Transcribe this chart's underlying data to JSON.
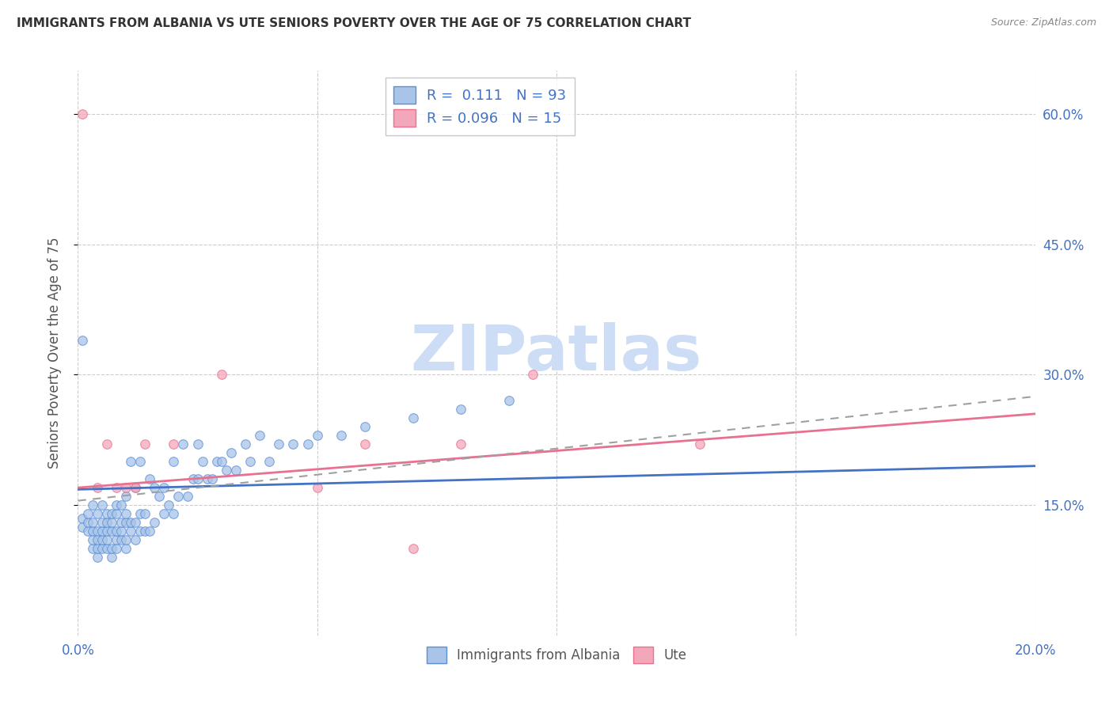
{
  "title": "IMMIGRANTS FROM ALBANIA VS UTE SENIORS POVERTY OVER THE AGE OF 75 CORRELATION CHART",
  "source": "Source: ZipAtlas.com",
  "ylabel": "Seniors Poverty Over the Age of 75",
  "xlim": [
    0.0,
    0.2
  ],
  "ylim": [
    0.0,
    0.65
  ],
  "yticks": [
    0.15,
    0.3,
    0.45,
    0.6
  ],
  "ytick_labels": [
    "15.0%",
    "30.0%",
    "45.0%",
    "60.0%"
  ],
  "xticks": [
    0.0,
    0.05,
    0.1,
    0.15,
    0.2
  ],
  "xtick_labels": [
    "0.0%",
    "",
    "",
    "",
    "20.0%"
  ],
  "albania_R": 0.111,
  "albania_N": 93,
  "ute_R": 0.096,
  "ute_N": 15,
  "albania_color": "#a8c4e8",
  "ute_color": "#f4a7b9",
  "albania_edge_color": "#5b8fd4",
  "ute_edge_color": "#e87090",
  "albania_line_color": "#4472c4",
  "ute_line_color": "#e87090",
  "dash_line_color": "#a0a0a0",
  "watermark_color": "#ccddf5",
  "albania_scatter_x": [
    0.001,
    0.001,
    0.002,
    0.002,
    0.002,
    0.003,
    0.003,
    0.003,
    0.003,
    0.003,
    0.004,
    0.004,
    0.004,
    0.004,
    0.004,
    0.005,
    0.005,
    0.005,
    0.005,
    0.005,
    0.006,
    0.006,
    0.006,
    0.006,
    0.006,
    0.007,
    0.007,
    0.007,
    0.007,
    0.007,
    0.008,
    0.008,
    0.008,
    0.008,
    0.008,
    0.009,
    0.009,
    0.009,
    0.009,
    0.01,
    0.01,
    0.01,
    0.01,
    0.01,
    0.011,
    0.011,
    0.011,
    0.012,
    0.012,
    0.012,
    0.013,
    0.013,
    0.013,
    0.014,
    0.014,
    0.015,
    0.015,
    0.016,
    0.016,
    0.017,
    0.018,
    0.018,
    0.019,
    0.02,
    0.02,
    0.021,
    0.022,
    0.023,
    0.024,
    0.025,
    0.025,
    0.026,
    0.027,
    0.028,
    0.029,
    0.03,
    0.031,
    0.032,
    0.033,
    0.035,
    0.036,
    0.038,
    0.04,
    0.042,
    0.045,
    0.048,
    0.05,
    0.055,
    0.06,
    0.07,
    0.08,
    0.001,
    0.09
  ],
  "albania_scatter_y": [
    0.135,
    0.125,
    0.12,
    0.13,
    0.14,
    0.1,
    0.12,
    0.13,
    0.15,
    0.11,
    0.09,
    0.1,
    0.12,
    0.14,
    0.11,
    0.1,
    0.11,
    0.12,
    0.13,
    0.15,
    0.1,
    0.11,
    0.12,
    0.13,
    0.14,
    0.09,
    0.1,
    0.12,
    0.13,
    0.14,
    0.1,
    0.11,
    0.12,
    0.14,
    0.15,
    0.11,
    0.12,
    0.13,
    0.15,
    0.1,
    0.11,
    0.13,
    0.14,
    0.16,
    0.12,
    0.13,
    0.2,
    0.11,
    0.13,
    0.17,
    0.12,
    0.14,
    0.2,
    0.12,
    0.14,
    0.12,
    0.18,
    0.13,
    0.17,
    0.16,
    0.14,
    0.17,
    0.15,
    0.14,
    0.2,
    0.16,
    0.22,
    0.16,
    0.18,
    0.18,
    0.22,
    0.2,
    0.18,
    0.18,
    0.2,
    0.2,
    0.19,
    0.21,
    0.19,
    0.22,
    0.2,
    0.23,
    0.2,
    0.22,
    0.22,
    0.22,
    0.23,
    0.23,
    0.24,
    0.25,
    0.26,
    0.34,
    0.27
  ],
  "ute_scatter_x": [
    0.001,
    0.004,
    0.006,
    0.008,
    0.01,
    0.012,
    0.014,
    0.02,
    0.03,
    0.05,
    0.06,
    0.07,
    0.08,
    0.095,
    0.13
  ],
  "ute_scatter_y": [
    0.6,
    0.17,
    0.22,
    0.17,
    0.17,
    0.17,
    0.22,
    0.22,
    0.3,
    0.17,
    0.22,
    0.1,
    0.22,
    0.3,
    0.22
  ],
  "albania_trend_x0": 0.0,
  "albania_trend_x1": 0.2,
  "albania_trend_y0": 0.168,
  "albania_trend_y1": 0.195,
  "ute_trend_x0": 0.0,
  "ute_trend_x1": 0.2,
  "ute_trend_y0": 0.17,
  "ute_trend_y1": 0.255,
  "dash_trend_x0": 0.0,
  "dash_trend_x1": 0.2,
  "dash_trend_y0": 0.155,
  "dash_trend_y1": 0.275
}
